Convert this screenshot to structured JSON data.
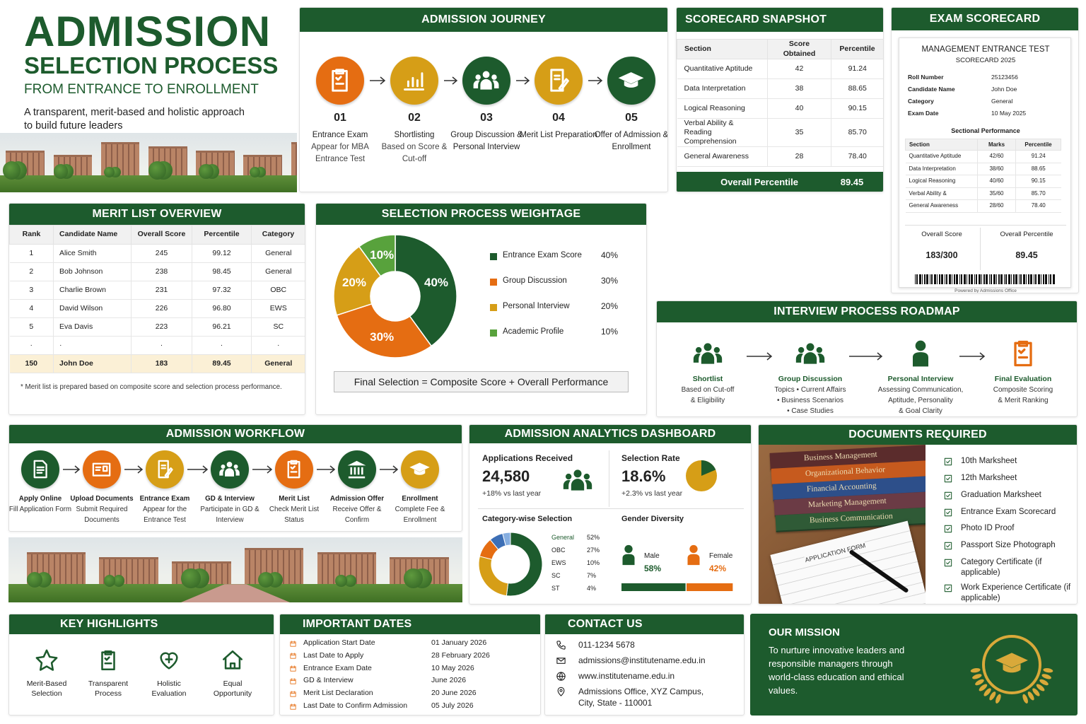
{
  "header": {
    "title": "ADMISSION",
    "subtitle": "SELECTION PROCESS",
    "tagline": "FROM ENTRANCE TO ENROLLMENT",
    "description": "A transparent, merit-based and holistic approach to build future leaders"
  },
  "journey": {
    "title": "ADMISSION JOURNEY",
    "steps": [
      {
        "number": "01",
        "title": "Entrance Exam",
        "text": "Appear for MBA Entrance Test"
      },
      {
        "number": "02",
        "title": "Shortlisting",
        "text": "Based on Score & Cut-off"
      },
      {
        "number": "03",
        "title": "Group Discussion & Personal Interview"
      },
      {
        "number": "04",
        "title": "Merit List Preparation"
      },
      {
        "number": "05",
        "title": "Offer of Admission & Enrollment"
      }
    ]
  },
  "scorecard_snapshot": {
    "title": "SCORECARD SNAPSHOT",
    "headers": [
      "Section",
      "Score Obtained",
      "Percentile"
    ],
    "rows": [
      [
        "Quantitative Aptitude",
        "42",
        "91.24"
      ],
      [
        "Data Interpretation",
        "38",
        "88.65"
      ],
      [
        "Logical Reasoning",
        "40",
        "90.15"
      ],
      [
        "Verbal Ability & Reading Comprehension",
        "35",
        "85.70"
      ],
      [
        "General Awareness",
        "28",
        "78.40"
      ]
    ],
    "overall_label": "Overall Percentile",
    "overall_value": "89.45"
  },
  "exam_scorecard": {
    "title": "EXAM SCORECARD",
    "card_title": "MANAGEMENT ENTRANCE TEST",
    "card_subtitle": "SCORECARD 2025",
    "fields": [
      [
        "Roll Number",
        "25123456"
      ],
      [
        "Candidate Name",
        "John Doe"
      ],
      [
        "Category",
        "General"
      ],
      [
        "Exam Date",
        "10 May 2025"
      ]
    ],
    "section_title": "Sectional Performance",
    "headers": [
      "Section",
      "Marks",
      "Percentile"
    ],
    "rows": [
      [
        "Quantitative Aptitude",
        "42/60",
        "91.24"
      ],
      [
        "Data Interpretation",
        "38/60",
        "88.65"
      ],
      [
        "Logical Reasoning",
        "40/60",
        "90.15"
      ],
      [
        "Verbal Ability &",
        "35/60",
        "85.70"
      ],
      [
        "General Awareness",
        "28/60",
        "78.40"
      ]
    ],
    "summary_headers": [
      "Overall Score",
      "Overall Percentile"
    ],
    "summary_values": [
      "183/300",
      "89.45"
    ],
    "footer": "Powered by Admissions Office"
  },
  "merit_list": {
    "title": "MERIT LIST OVERVIEW",
    "headers": [
      "Rank",
      "Candidate Name",
      "Overall Score",
      "Percentile",
      "Category"
    ],
    "rows": [
      [
        "1",
        "Alice Smith",
        "245",
        "99.12",
        "General"
      ],
      [
        "2",
        "Bob Johnson",
        "238",
        "98.45",
        "General"
      ],
      [
        "3",
        "Charlie Brown",
        "231",
        "97.32",
        "OBC"
      ],
      [
        "4",
        "David Wilson",
        "226",
        "96.80",
        "EWS"
      ],
      [
        "5",
        "Eva Davis",
        "223",
        "96.21",
        "SC"
      ],
      [
        "·",
        "·",
        "·",
        "·",
        "·"
      ],
      [
        "150",
        "John Doe",
        "183",
        "89.45",
        "General"
      ]
    ],
    "note": "* Merit list is prepared based on composite score and selection process performance."
  },
  "weightage": {
    "title": "SELECTION PROCESS WEIGHTAGE",
    "items": [
      {
        "name": "Entrance Exam Score",
        "value": 40,
        "label": "40%",
        "color": "#1d5b2d"
      },
      {
        "name": "Group Discussion",
        "value": 30,
        "label": "30%",
        "color": "#e56d12"
      },
      {
        "name": "Personal Interview",
        "value": 20,
        "label": "20%",
        "color": "#d69e17"
      },
      {
        "name": "Academic Profile",
        "value": 10,
        "label": "10%",
        "color": "#58a23c"
      }
    ],
    "formula": "Final Selection = Composite Score + Overall Performance"
  },
  "interview_roadmap": {
    "title": "INTERVIEW PROCESS ROADMAP",
    "steps": [
      {
        "title": "Shortlist",
        "lines": [
          "Based on Cut-off",
          "& Eligibility"
        ]
      },
      {
        "title": "Group Discussion",
        "lines": [
          "Topics • Current Affairs",
          "• Business Scenarios",
          "• Case Studies"
        ]
      },
      {
        "title": "Personal Interview",
        "lines": [
          "Assessing Communication,",
          "Aptitude, Personality",
          "& Goal Clarity"
        ]
      },
      {
        "title": "Final Evaluation",
        "lines": [
          "Composite Scoring",
          "& Merit Ranking"
        ]
      }
    ]
  },
  "workflow": {
    "title": "ADMISSION WORKFLOW",
    "steps": [
      {
        "title": "Apply Online",
        "text": "Fill Application Form"
      },
      {
        "title": "Upload Documents",
        "text": "Submit Required Documents"
      },
      {
        "title": "Entrance Exam",
        "text": "Appear for the Entrance Test"
      },
      {
        "title": "GD & Interview",
        "text": "Participate in GD & Interview"
      },
      {
        "title": "Merit List",
        "text": "Check Merit List Status"
      },
      {
        "title": "Admission Offer",
        "text": "Receive Offer & Confirm"
      },
      {
        "title": "Enrollment",
        "text": "Complete Fee & Enrollment"
      }
    ]
  },
  "analytics": {
    "title": "ADMISSION ANALYTICS DASHBOARD",
    "applications": {
      "label": "Applications Received",
      "value": "24,580",
      "change": "+18% vs last year"
    },
    "selection_rate": {
      "label": "Selection Rate",
      "value": 18.6,
      "value_label": "18.6%",
      "change": "+2.3% vs last year"
    },
    "category": {
      "title": "Category-wise Selection",
      "items": [
        {
          "name": "General",
          "value": 52,
          "label": "52%",
          "color": "#1d5b2d"
        },
        {
          "name": "OBC",
          "value": 27,
          "label": "27%",
          "color": "#d69e17"
        },
        {
          "name": "EWS",
          "value": 10,
          "label": "10%",
          "color": "#e56d12"
        },
        {
          "name": "SC",
          "value": 7,
          "label": "7%",
          "color": "#3d6fb6"
        },
        {
          "name": "ST",
          "value": 4,
          "label": "4%",
          "color": "#86aee0"
        }
      ]
    },
    "gender": {
      "title": "Gender Diversity",
      "items": [
        {
          "name": "Male",
          "value": 58,
          "label": "58%",
          "color": "#1d5b2d"
        },
        {
          "name": "Female",
          "value": 42,
          "label": "42%",
          "color": "#e56d12"
        }
      ]
    }
  },
  "documents": {
    "title": "DOCUMENTS REQUIRED",
    "items": [
      "10th Marksheet",
      "12th Marksheet",
      "Graduation Marksheet",
      "Entrance Exam Scorecard",
      "Photo ID Proof",
      "Passport Size Photograph",
      "Category Certificate (if applicable)",
      "Work Experience Certificate (if applicable)"
    ],
    "book_titles": [
      "Business Management",
      "Organizational Behavior",
      "Financial Accounting",
      "Marketing Management",
      "Business Communication"
    ],
    "form_title": "APPLICATION FORM"
  },
  "highlights": {
    "title": "KEY HIGHLIGHTS",
    "items": [
      "Merit-Based Selection",
      "Transparent Process",
      "Holistic Evaluation",
      "Equal Opportunity"
    ]
  },
  "dates": {
    "title": "IMPORTANT DATES",
    "rows": [
      [
        "Application Start Date",
        "01 January 2026"
      ],
      [
        "Last Date to Apply",
        "28 February 2026"
      ],
      [
        "Entrance Exam Date",
        "10 May 2026"
      ],
      [
        "GD & Interview",
        "June 2026"
      ],
      [
        "Merit List Declaration",
        "20 June 2026"
      ],
      [
        "Last Date to Confirm Admission",
        "05 July 2026"
      ]
    ]
  },
  "contact": {
    "title": "CONTACT US",
    "phone": "011-1234 5678",
    "email": "admissions@institutename.edu.in",
    "website": "www.institutename.edu.in",
    "address": "Admissions Office, XYZ Campus, City, State - 110001"
  },
  "mission": {
    "title": "OUR MISSION",
    "text": "To nurture innovative leaders and responsible managers through world-class education and ethical values."
  }
}
